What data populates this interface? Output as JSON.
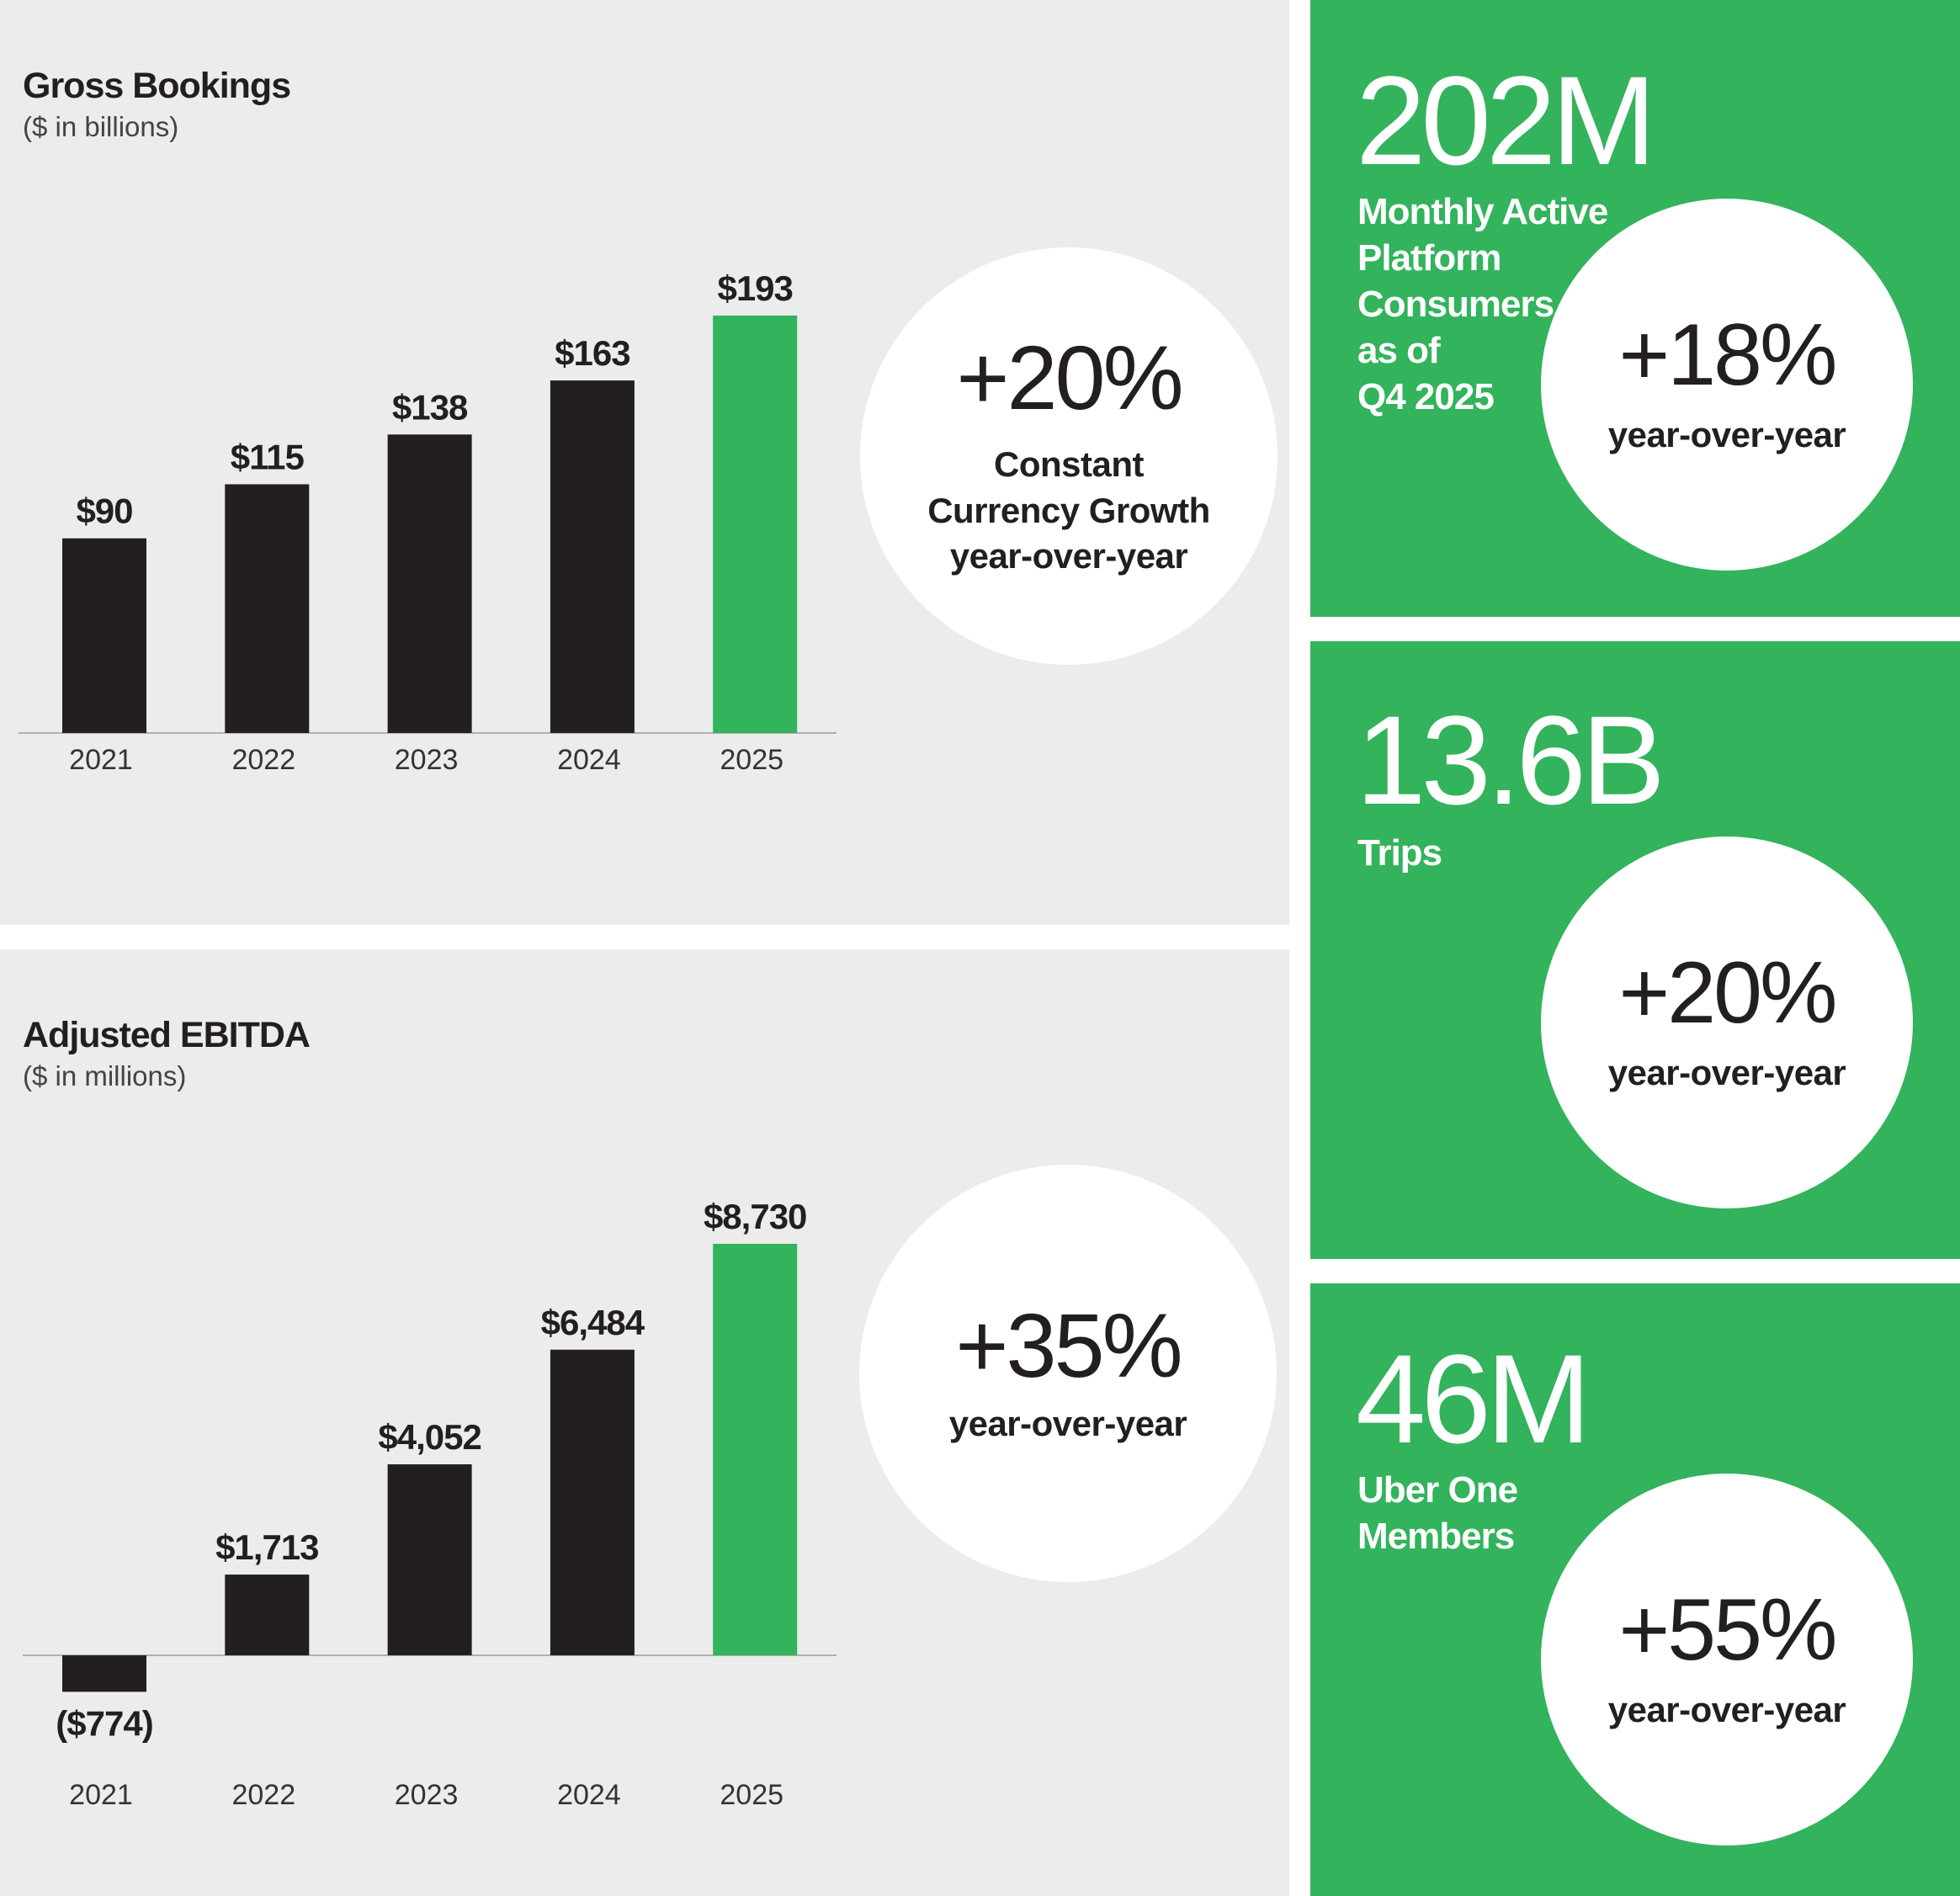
{
  "chart_data": [
    {
      "type": "bar",
      "title": "Gross Bookings",
      "subtitle": "($ in billions)",
      "categories": [
        "2021",
        "2022",
        "2023",
        "2024",
        "2025"
      ],
      "values": [
        90,
        115,
        138,
        163,
        193
      ],
      "labels": [
        "$90",
        "$115",
        "$138",
        "$163",
        "$193"
      ],
      "colors": [
        "#231f20",
        "#231f20",
        "#231f20",
        "#231f20",
        "#32b35c"
      ],
      "grid": false,
      "highlight": {
        "pct": "+20%",
        "text": "Constant\nCurrency Growth\nyear-over-year"
      }
    },
    {
      "type": "bar",
      "title": "Adjusted EBITDA",
      "subtitle": "($ in millions)",
      "categories": [
        "2021",
        "2022",
        "2023",
        "2024",
        "2025"
      ],
      "values": [
        -774,
        1713,
        4052,
        6484,
        8730
      ],
      "labels": [
        "($774)",
        "$1,713",
        "$4,052",
        "$6,484",
        "$8,730"
      ],
      "colors": [
        "#231f20",
        "#231f20",
        "#231f20",
        "#231f20",
        "#32b35c"
      ],
      "grid": false,
      "highlight": {
        "pct": "+35%",
        "text": "year-over-year"
      }
    }
  ],
  "kpis": [
    {
      "value": "202M",
      "label": "Monthly Active\nPlatform\nConsumers\nas of\nQ4 2025",
      "pct": "+18%",
      "sub": "year-over-year"
    },
    {
      "value": "13.6B",
      "label": "Trips",
      "pct": "+20%",
      "sub": "year-over-year"
    },
    {
      "value": "46M",
      "label": "Uber One\nMembers",
      "pct": "+55%",
      "sub": "year-over-year"
    }
  ],
  "colors": {
    "background_panel": "#ececec",
    "bar": "#231f20",
    "accent_green": "#32b35c",
    "white": "#ffffff"
  }
}
